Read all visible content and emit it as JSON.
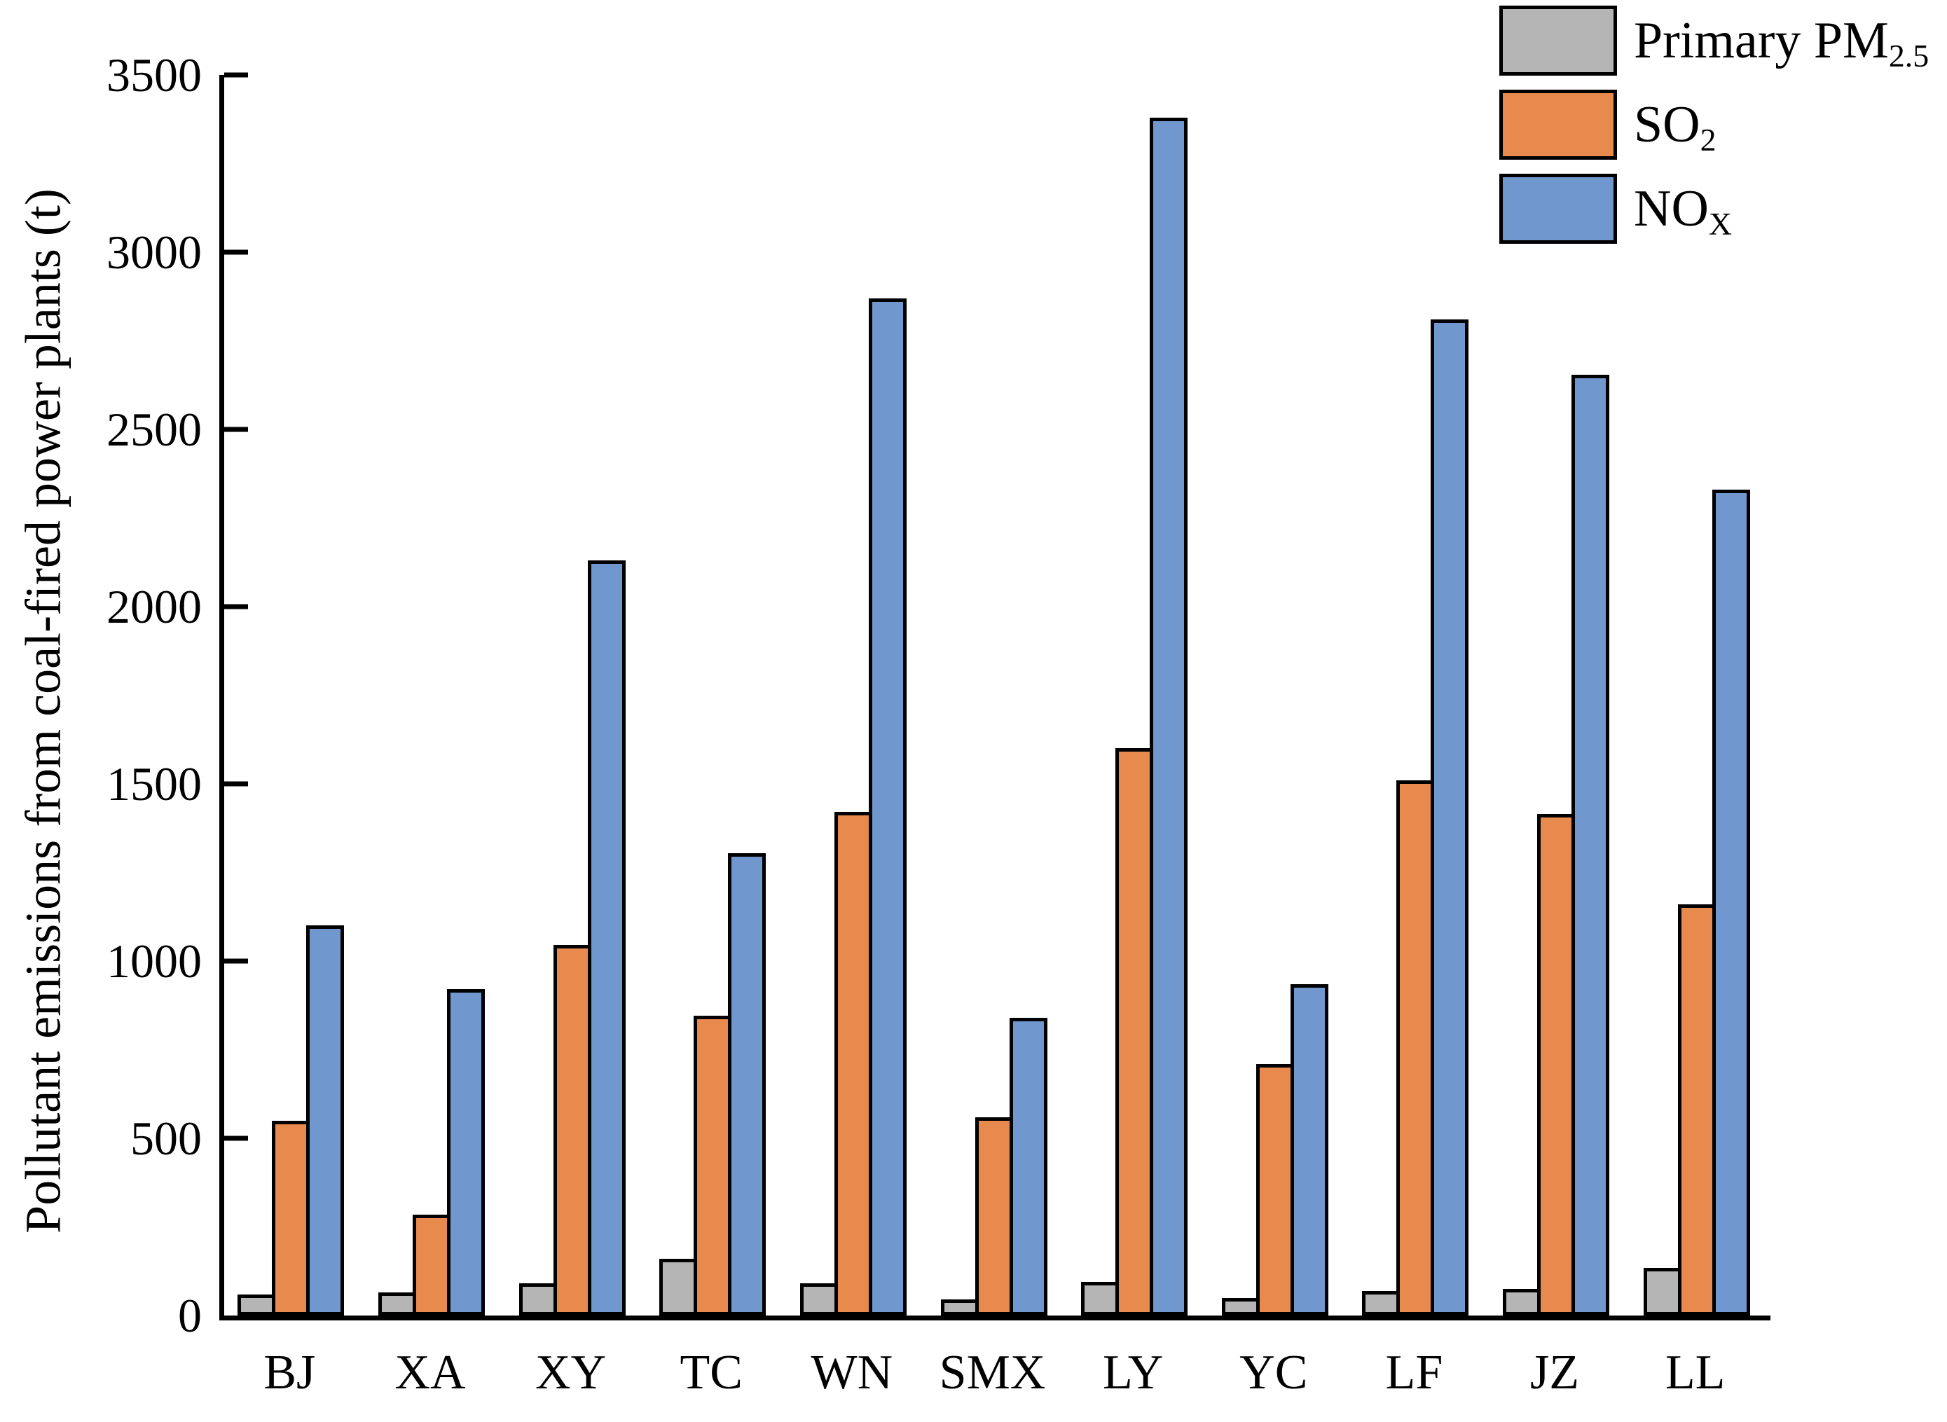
{
  "chart_data": {
    "type": "bar",
    "title": "",
    "xlabel": "",
    "ylabel": "Pollutant emissions from coal-fired power plants (t)",
    "categories": [
      "BJ",
      "XA",
      "XY",
      "TC",
      "WN",
      "SMX",
      "LY",
      "YC",
      "LF",
      "JZ",
      "LL"
    ],
    "series": [
      {
        "name": "Primary PM2.5",
        "label_base": "Primary PM",
        "label_sub": "2.5",
        "color": "#b5b5b5",
        "values": [
          60,
          65,
          90,
          160,
          90,
          45,
          95,
          50,
          70,
          75,
          135
        ]
      },
      {
        "name": "SO2",
        "label_base": "SO",
        "label_sub": "2",
        "color": "#e8894e",
        "values": [
          550,
          285,
          1045,
          845,
          1420,
          560,
          1600,
          710,
          1510,
          1415,
          1160
        ]
      },
      {
        "name": "NOX",
        "label_base": "NO",
        "label_sub": "X",
        "color": "#7097ce",
        "values": [
          1100,
          920,
          2130,
          1305,
          2870,
          840,
          3380,
          935,
          2810,
          2655,
          2330
        ]
      }
    ],
    "ylim": [
      0,
      3500
    ],
    "yticks": [
      0,
      500,
      1000,
      1500,
      2000,
      2500,
      3000,
      3500
    ],
    "grid": false,
    "legend_position": "top-right",
    "bar_edge_color": "#000000",
    "axis_color": "#000000"
  }
}
